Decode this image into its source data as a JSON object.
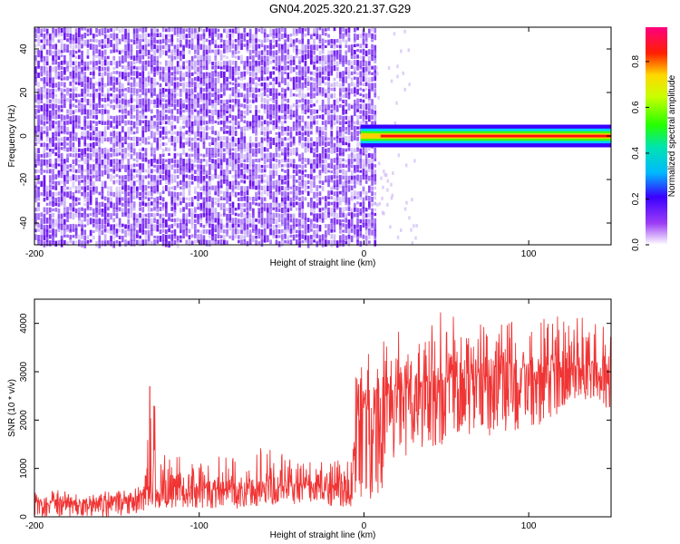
{
  "title": "GN04.2025.320.21.37.G29",
  "colors": {
    "signal_line": "#ff0000",
    "signal_fill": "#f03434",
    "noise_cell": "#6a10ee",
    "noise_cell_light": "#c8b0f5"
  },
  "chart_data": [
    {
      "type": "heatmap",
      "xlabel": "Height of straight line (km)",
      "ylabel": "Frequency (Hz)",
      "xlim": [
        -200,
        150
      ],
      "ylim": [
        -50,
        50
      ],
      "xticks": [
        -200,
        -100,
        0,
        100
      ],
      "xtick_labels": [
        "-200",
        "-100",
        "0",
        "100"
      ],
      "yticks": [
        -40,
        -20,
        0,
        20,
        40
      ],
      "ytick_labels": [
        "-40",
        "-20",
        "0",
        "20",
        "40"
      ],
      "regions": [
        {
          "x_range": [
            -200,
            7
          ],
          "y_range": [
            -50,
            50
          ],
          "normalized_amplitude": 0.15
        },
        {
          "x_range": [
            -2,
            150
          ],
          "y_center": 0,
          "y_halfwidth": 2,
          "normalized_amplitude": 1.0
        }
      ],
      "colorbar": {
        "label": "Normalized spectral amplitude",
        "range": [
          0.0,
          0.95
        ],
        "ticks": [
          0.0,
          0.2,
          0.4,
          0.6,
          0.8
        ],
        "tick_labels": [
          "0.0",
          "0.2",
          "0.4",
          "0.6",
          "0.8"
        ]
      },
      "grid": false
    },
    {
      "type": "line",
      "xlabel": "Height of straight line (km)",
      "ylabel": "SNR (10 * v/v)",
      "xlim": [
        -200,
        150
      ],
      "ylim": [
        0,
        4500
      ],
      "xticks": [
        -200,
        -100,
        0,
        100
      ],
      "xtick_labels": [
        "-200",
        "-100",
        "0",
        "100"
      ],
      "yticks": [
        0,
        1000,
        2000,
        3000,
        4000
      ],
      "ytick_labels": [
        "0",
        "1000",
        "2000",
        "3000",
        "4000"
      ],
      "series": [
        {
          "x": [
            -200,
            -150,
            -133,
            -130,
            -110,
            -80,
            -60,
            -40,
            -20,
            -10,
            -8,
            -5,
            -2,
            10,
            20,
            40,
            60,
            80,
            100,
            120,
            130,
            150
          ],
          "mean": [
            300,
            300,
            450,
            500,
            550,
            550,
            600,
            650,
            650,
            650,
            400,
            1700,
            2000,
            2400,
            2600,
            2800,
            2850,
            2900,
            2950,
            3000,
            3100,
            3000
          ],
          "max": [
            550,
            550,
            700,
            2700,
            1100,
            1300,
            1500,
            1150,
            1150,
            1200,
            1000,
            3000,
            3600,
            3800,
            4400,
            4200,
            4300,
            4200,
            4100,
            4200,
            4300,
            4000
          ],
          "min": [
            0,
            0,
            100,
            150,
            200,
            150,
            250,
            250,
            200,
            200,
            0,
            400,
            300,
            200,
            1200,
            1400,
            1600,
            1700,
            1800,
            2000,
            2400,
            2200
          ]
        }
      ],
      "grid": false
    }
  ]
}
